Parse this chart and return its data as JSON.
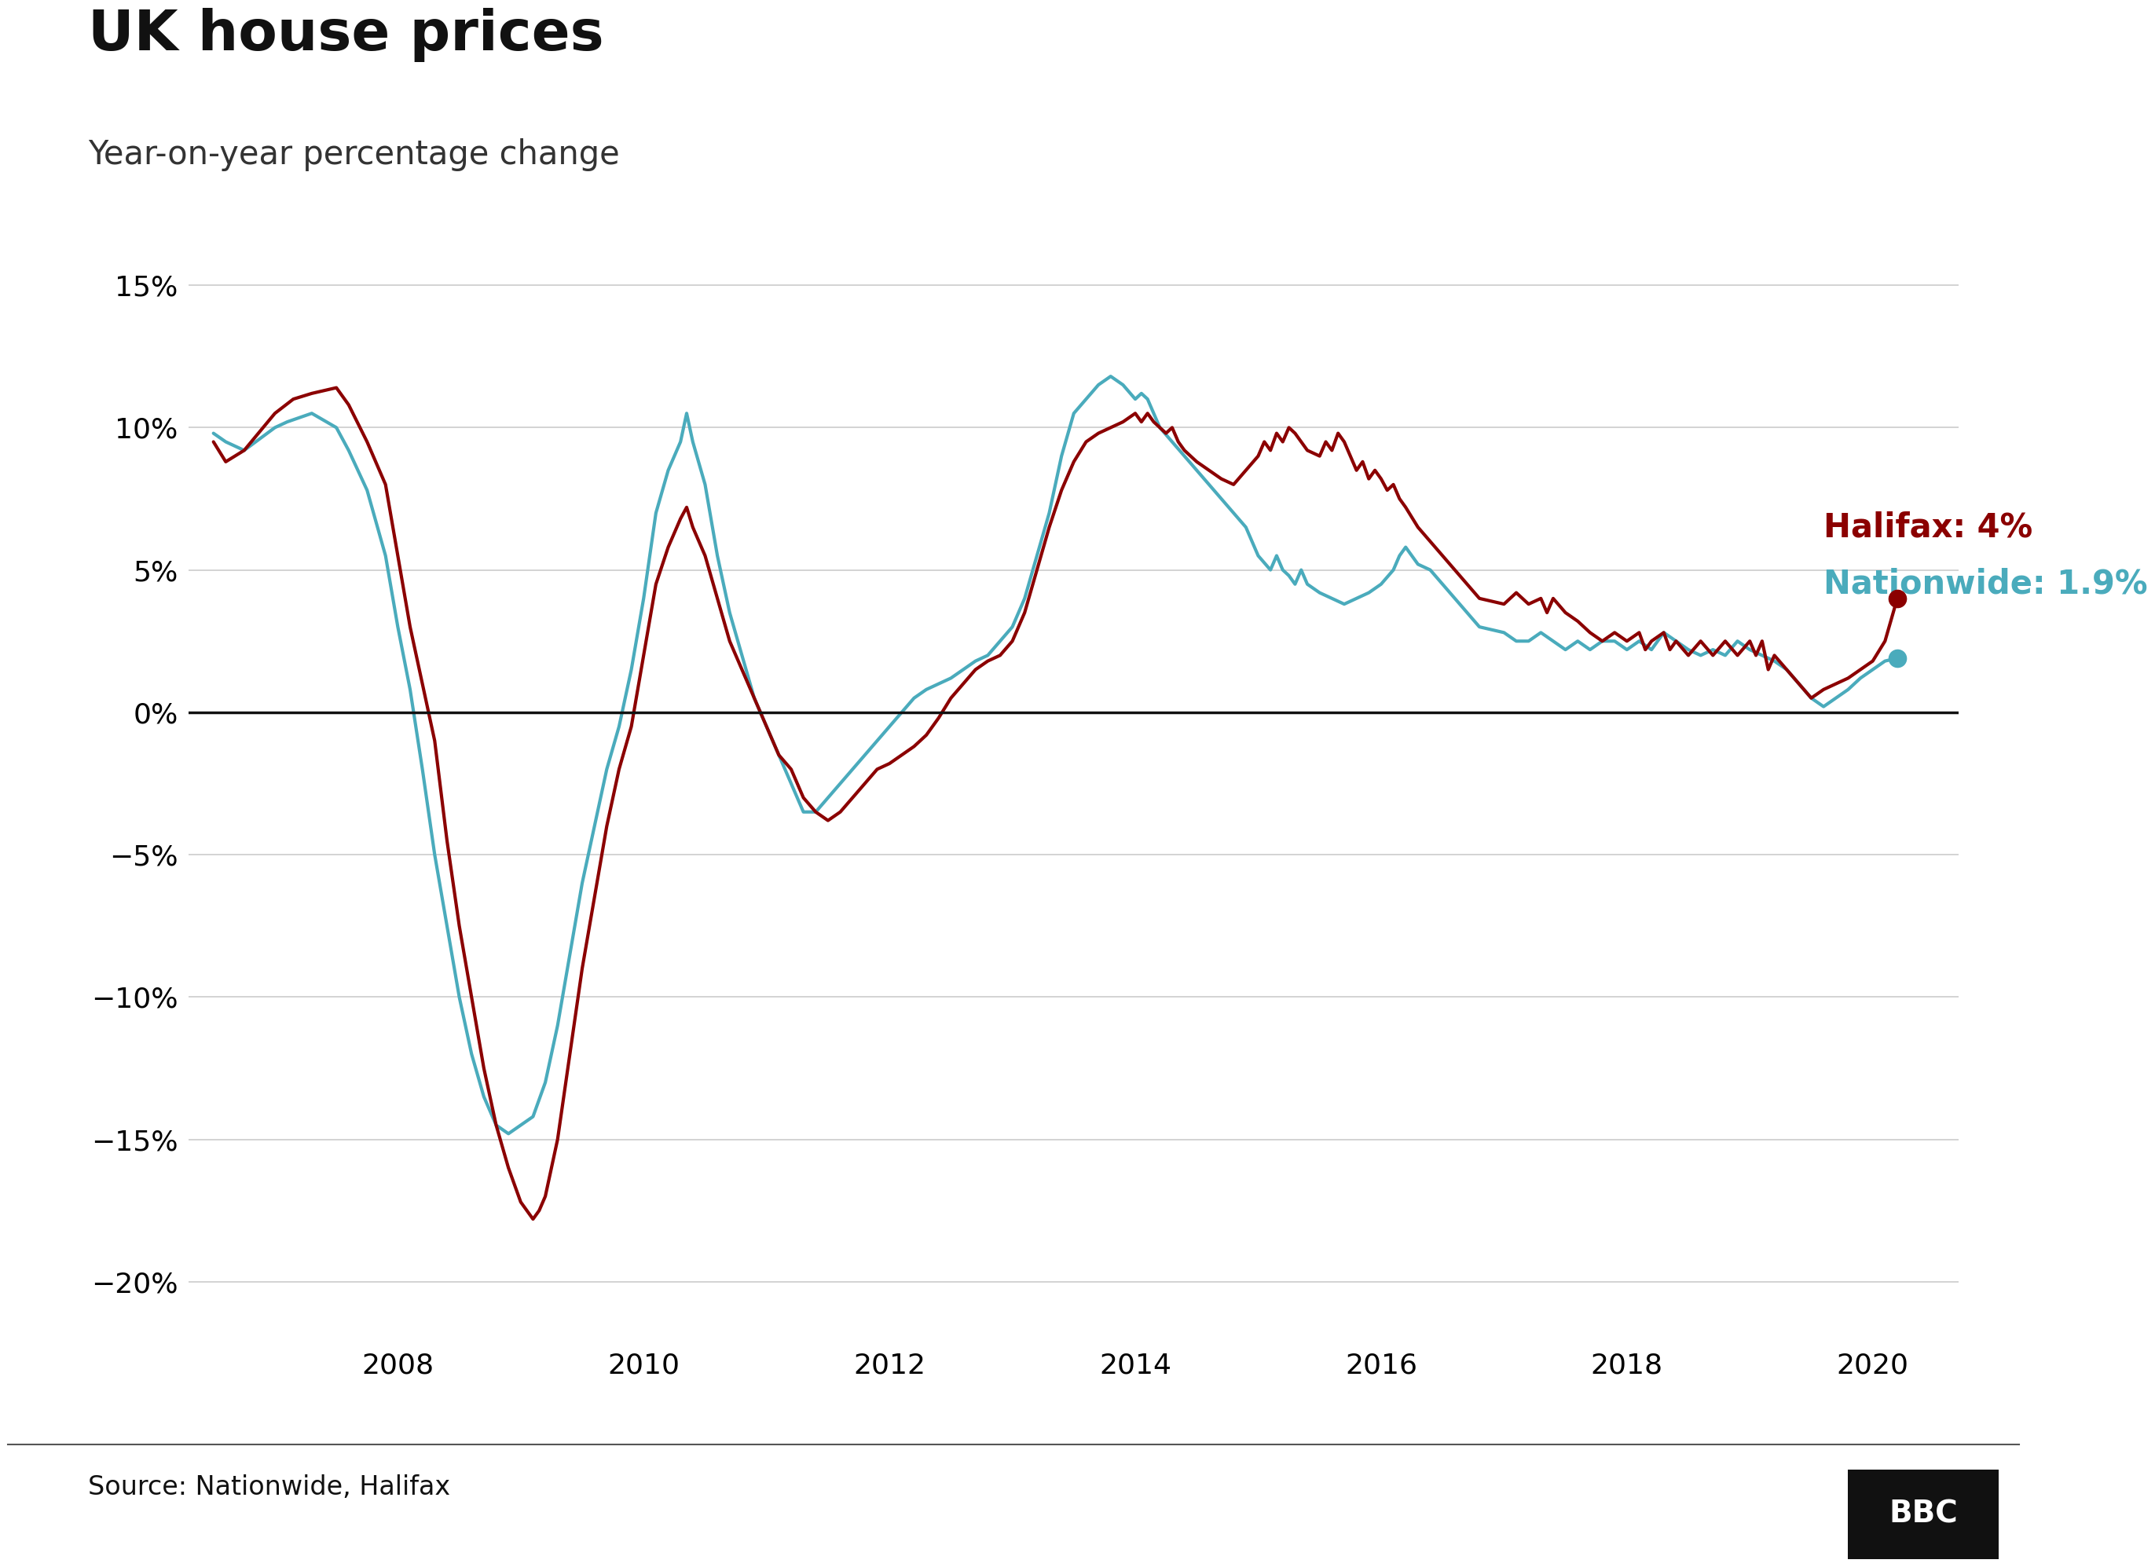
{
  "title": "UK house prices",
  "subtitle": "Year-on-year percentage change",
  "source_text": "Source: Nationwide, Halifax",
  "bbc_text": "BBC",
  "title_fontsize": 52,
  "subtitle_fontsize": 30,
  "source_fontsize": 24,
  "axis_tick_fontsize": 26,
  "annotation_fontsize": 30,
  "halifax_label": "Halifax: 4%",
  "nationwide_label": "Nationwide: 1.9%",
  "halifax_color": "#8B0000",
  "nationwide_color": "#4AABBC",
  "background_color": "#ffffff",
  "zero_line_color": "#111111",
  "grid_color": "#cccccc",
  "ylim": [
    -22,
    17
  ],
  "yticks": [
    -20,
    -15,
    -10,
    -5,
    0,
    5,
    10,
    15
  ],
  "xlim_start": 2006.3,
  "xlim_end": 2020.7,
  "xticks": [
    2008,
    2010,
    2012,
    2014,
    2016,
    2018,
    2020
  ],
  "halifax_data": [
    [
      2006.5,
      9.5
    ],
    [
      2006.6,
      8.8
    ],
    [
      2006.75,
      9.2
    ],
    [
      2007.0,
      10.5
    ],
    [
      2007.15,
      11.0
    ],
    [
      2007.3,
      11.2
    ],
    [
      2007.5,
      11.4
    ],
    [
      2007.6,
      10.8
    ],
    [
      2007.75,
      9.5
    ],
    [
      2007.9,
      8.0
    ],
    [
      2008.0,
      5.5
    ],
    [
      2008.1,
      3.0
    ],
    [
      2008.2,
      1.0
    ],
    [
      2008.3,
      -1.0
    ],
    [
      2008.4,
      -4.5
    ],
    [
      2008.5,
      -7.5
    ],
    [
      2008.6,
      -10.0
    ],
    [
      2008.7,
      -12.5
    ],
    [
      2008.8,
      -14.5
    ],
    [
      2008.9,
      -16.0
    ],
    [
      2009.0,
      -17.2
    ],
    [
      2009.1,
      -17.8
    ],
    [
      2009.15,
      -17.5
    ],
    [
      2009.2,
      -17.0
    ],
    [
      2009.3,
      -15.0
    ],
    [
      2009.4,
      -12.0
    ],
    [
      2009.5,
      -9.0
    ],
    [
      2009.6,
      -6.5
    ],
    [
      2009.7,
      -4.0
    ],
    [
      2009.8,
      -2.0
    ],
    [
      2009.9,
      -0.5
    ],
    [
      2010.0,
      2.0
    ],
    [
      2010.1,
      4.5
    ],
    [
      2010.2,
      5.8
    ],
    [
      2010.3,
      6.8
    ],
    [
      2010.35,
      7.2
    ],
    [
      2010.4,
      6.5
    ],
    [
      2010.5,
      5.5
    ],
    [
      2010.6,
      4.0
    ],
    [
      2010.7,
      2.5
    ],
    [
      2010.8,
      1.5
    ],
    [
      2010.9,
      0.5
    ],
    [
      2011.0,
      -0.5
    ],
    [
      2011.1,
      -1.5
    ],
    [
      2011.2,
      -2.0
    ],
    [
      2011.3,
      -3.0
    ],
    [
      2011.4,
      -3.5
    ],
    [
      2011.5,
      -3.8
    ],
    [
      2011.6,
      -3.5
    ],
    [
      2011.7,
      -3.0
    ],
    [
      2011.8,
      -2.5
    ],
    [
      2011.9,
      -2.0
    ],
    [
      2012.0,
      -1.8
    ],
    [
      2012.1,
      -1.5
    ],
    [
      2012.2,
      -1.2
    ],
    [
      2012.3,
      -0.8
    ],
    [
      2012.4,
      -0.2
    ],
    [
      2012.5,
      0.5
    ],
    [
      2012.6,
      1.0
    ],
    [
      2012.7,
      1.5
    ],
    [
      2012.8,
      1.8
    ],
    [
      2012.9,
      2.0
    ],
    [
      2013.0,
      2.5
    ],
    [
      2013.1,
      3.5
    ],
    [
      2013.2,
      5.0
    ],
    [
      2013.3,
      6.5
    ],
    [
      2013.4,
      7.8
    ],
    [
      2013.5,
      8.8
    ],
    [
      2013.6,
      9.5
    ],
    [
      2013.7,
      9.8
    ],
    [
      2013.8,
      10.0
    ],
    [
      2013.9,
      10.2
    ],
    [
      2014.0,
      10.5
    ],
    [
      2014.05,
      10.2
    ],
    [
      2014.1,
      10.5
    ],
    [
      2014.15,
      10.2
    ],
    [
      2014.2,
      10.0
    ],
    [
      2014.25,
      9.8
    ],
    [
      2014.3,
      10.0
    ],
    [
      2014.35,
      9.5
    ],
    [
      2014.4,
      9.2
    ],
    [
      2014.5,
      8.8
    ],
    [
      2014.6,
      8.5
    ],
    [
      2014.7,
      8.2
    ],
    [
      2014.8,
      8.0
    ],
    [
      2014.9,
      8.5
    ],
    [
      2015.0,
      9.0
    ],
    [
      2015.05,
      9.5
    ],
    [
      2015.1,
      9.2
    ],
    [
      2015.15,
      9.8
    ],
    [
      2015.2,
      9.5
    ],
    [
      2015.25,
      10.0
    ],
    [
      2015.3,
      9.8
    ],
    [
      2015.35,
      9.5
    ],
    [
      2015.4,
      9.2
    ],
    [
      2015.5,
      9.0
    ],
    [
      2015.55,
      9.5
    ],
    [
      2015.6,
      9.2
    ],
    [
      2015.65,
      9.8
    ],
    [
      2015.7,
      9.5
    ],
    [
      2015.75,
      9.0
    ],
    [
      2015.8,
      8.5
    ],
    [
      2015.85,
      8.8
    ],
    [
      2015.9,
      8.2
    ],
    [
      2015.95,
      8.5
    ],
    [
      2016.0,
      8.2
    ],
    [
      2016.05,
      7.8
    ],
    [
      2016.1,
      8.0
    ],
    [
      2016.15,
      7.5
    ],
    [
      2016.2,
      7.2
    ],
    [
      2016.3,
      6.5
    ],
    [
      2016.4,
      6.0
    ],
    [
      2016.5,
      5.5
    ],
    [
      2016.6,
      5.0
    ],
    [
      2016.7,
      4.5
    ],
    [
      2016.8,
      4.0
    ],
    [
      2017.0,
      3.8
    ],
    [
      2017.1,
      4.2
    ],
    [
      2017.2,
      3.8
    ],
    [
      2017.3,
      4.0
    ],
    [
      2017.35,
      3.5
    ],
    [
      2017.4,
      4.0
    ],
    [
      2017.5,
      3.5
    ],
    [
      2017.6,
      3.2
    ],
    [
      2017.7,
      2.8
    ],
    [
      2017.8,
      2.5
    ],
    [
      2017.9,
      2.8
    ],
    [
      2018.0,
      2.5
    ],
    [
      2018.1,
      2.8
    ],
    [
      2018.15,
      2.2
    ],
    [
      2018.2,
      2.5
    ],
    [
      2018.3,
      2.8
    ],
    [
      2018.35,
      2.2
    ],
    [
      2018.4,
      2.5
    ],
    [
      2018.5,
      2.0
    ],
    [
      2018.6,
      2.5
    ],
    [
      2018.7,
      2.0
    ],
    [
      2018.8,
      2.5
    ],
    [
      2018.9,
      2.0
    ],
    [
      2019.0,
      2.5
    ],
    [
      2019.05,
      2.0
    ],
    [
      2019.1,
      2.5
    ],
    [
      2019.15,
      1.5
    ],
    [
      2019.2,
      2.0
    ],
    [
      2019.3,
      1.5
    ],
    [
      2019.4,
      1.0
    ],
    [
      2019.5,
      0.5
    ],
    [
      2019.6,
      0.8
    ],
    [
      2019.7,
      1.0
    ],
    [
      2019.8,
      1.2
    ],
    [
      2019.9,
      1.5
    ],
    [
      2020.0,
      1.8
    ],
    [
      2020.1,
      2.5
    ],
    [
      2020.2,
      4.0
    ]
  ],
  "nationwide_data": [
    [
      2006.5,
      9.8
    ],
    [
      2006.6,
      9.5
    ],
    [
      2006.75,
      9.2
    ],
    [
      2007.0,
      10.0
    ],
    [
      2007.1,
      10.2
    ],
    [
      2007.3,
      10.5
    ],
    [
      2007.5,
      10.0
    ],
    [
      2007.6,
      9.2
    ],
    [
      2007.75,
      7.8
    ],
    [
      2007.9,
      5.5
    ],
    [
      2008.0,
      3.0
    ],
    [
      2008.1,
      0.8
    ],
    [
      2008.2,
      -2.0
    ],
    [
      2008.3,
      -5.0
    ],
    [
      2008.4,
      -7.5
    ],
    [
      2008.5,
      -10.0
    ],
    [
      2008.6,
      -12.0
    ],
    [
      2008.7,
      -13.5
    ],
    [
      2008.8,
      -14.5
    ],
    [
      2008.9,
      -14.8
    ],
    [
      2009.0,
      -14.5
    ],
    [
      2009.1,
      -14.2
    ],
    [
      2009.2,
      -13.0
    ],
    [
      2009.3,
      -11.0
    ],
    [
      2009.4,
      -8.5
    ],
    [
      2009.5,
      -6.0
    ],
    [
      2009.6,
      -4.0
    ],
    [
      2009.7,
      -2.0
    ],
    [
      2009.8,
      -0.5
    ],
    [
      2009.9,
      1.5
    ],
    [
      2010.0,
      4.0
    ],
    [
      2010.1,
      7.0
    ],
    [
      2010.2,
      8.5
    ],
    [
      2010.3,
      9.5
    ],
    [
      2010.35,
      10.5
    ],
    [
      2010.4,
      9.5
    ],
    [
      2010.5,
      8.0
    ],
    [
      2010.6,
      5.5
    ],
    [
      2010.7,
      3.5
    ],
    [
      2010.8,
      2.0
    ],
    [
      2010.9,
      0.5
    ],
    [
      2011.0,
      -0.5
    ],
    [
      2011.1,
      -1.5
    ],
    [
      2011.2,
      -2.5
    ],
    [
      2011.3,
      -3.5
    ],
    [
      2011.4,
      -3.5
    ],
    [
      2011.5,
      -3.0
    ],
    [
      2011.6,
      -2.5
    ],
    [
      2011.7,
      -2.0
    ],
    [
      2011.8,
      -1.5
    ],
    [
      2011.9,
      -1.0
    ],
    [
      2012.0,
      -0.5
    ],
    [
      2012.1,
      0.0
    ],
    [
      2012.2,
      0.5
    ],
    [
      2012.3,
      0.8
    ],
    [
      2012.4,
      1.0
    ],
    [
      2012.5,
      1.2
    ],
    [
      2012.6,
      1.5
    ],
    [
      2012.7,
      1.8
    ],
    [
      2012.8,
      2.0
    ],
    [
      2012.9,
      2.5
    ],
    [
      2013.0,
      3.0
    ],
    [
      2013.1,
      4.0
    ],
    [
      2013.2,
      5.5
    ],
    [
      2013.3,
      7.0
    ],
    [
      2013.4,
      9.0
    ],
    [
      2013.5,
      10.5
    ],
    [
      2013.6,
      11.0
    ],
    [
      2013.7,
      11.5
    ],
    [
      2013.8,
      11.8
    ],
    [
      2013.9,
      11.5
    ],
    [
      2014.0,
      11.0
    ],
    [
      2014.05,
      11.2
    ],
    [
      2014.1,
      11.0
    ],
    [
      2014.15,
      10.5
    ],
    [
      2014.2,
      10.0
    ],
    [
      2014.3,
      9.5
    ],
    [
      2014.4,
      9.0
    ],
    [
      2014.5,
      8.5
    ],
    [
      2014.6,
      8.0
    ],
    [
      2014.7,
      7.5
    ],
    [
      2014.8,
      7.0
    ],
    [
      2014.9,
      6.5
    ],
    [
      2015.0,
      5.5
    ],
    [
      2015.1,
      5.0
    ],
    [
      2015.15,
      5.5
    ],
    [
      2015.2,
      5.0
    ],
    [
      2015.25,
      4.8
    ],
    [
      2015.3,
      4.5
    ],
    [
      2015.35,
      5.0
    ],
    [
      2015.4,
      4.5
    ],
    [
      2015.5,
      4.2
    ],
    [
      2015.6,
      4.0
    ],
    [
      2015.7,
      3.8
    ],
    [
      2015.8,
      4.0
    ],
    [
      2015.9,
      4.2
    ],
    [
      2016.0,
      4.5
    ],
    [
      2016.1,
      5.0
    ],
    [
      2016.15,
      5.5
    ],
    [
      2016.2,
      5.8
    ],
    [
      2016.25,
      5.5
    ],
    [
      2016.3,
      5.2
    ],
    [
      2016.4,
      5.0
    ],
    [
      2016.5,
      4.5
    ],
    [
      2016.6,
      4.0
    ],
    [
      2016.7,
      3.5
    ],
    [
      2016.8,
      3.0
    ],
    [
      2017.0,
      2.8
    ],
    [
      2017.1,
      2.5
    ],
    [
      2017.2,
      2.5
    ],
    [
      2017.3,
      2.8
    ],
    [
      2017.4,
      2.5
    ],
    [
      2017.5,
      2.2
    ],
    [
      2017.6,
      2.5
    ],
    [
      2017.7,
      2.2
    ],
    [
      2017.8,
      2.5
    ],
    [
      2017.9,
      2.5
    ],
    [
      2018.0,
      2.2
    ],
    [
      2018.1,
      2.5
    ],
    [
      2018.2,
      2.2
    ],
    [
      2018.3,
      2.8
    ],
    [
      2018.4,
      2.5
    ],
    [
      2018.5,
      2.2
    ],
    [
      2018.6,
      2.0
    ],
    [
      2018.7,
      2.2
    ],
    [
      2018.8,
      2.0
    ],
    [
      2018.9,
      2.5
    ],
    [
      2019.0,
      2.2
    ],
    [
      2019.1,
      2.0
    ],
    [
      2019.2,
      1.8
    ],
    [
      2019.3,
      1.5
    ],
    [
      2019.4,
      1.0
    ],
    [
      2019.5,
      0.5
    ],
    [
      2019.6,
      0.2
    ],
    [
      2019.7,
      0.5
    ],
    [
      2019.8,
      0.8
    ],
    [
      2019.9,
      1.2
    ],
    [
      2020.0,
      1.5
    ],
    [
      2020.1,
      1.8
    ],
    [
      2020.2,
      1.9
    ]
  ]
}
